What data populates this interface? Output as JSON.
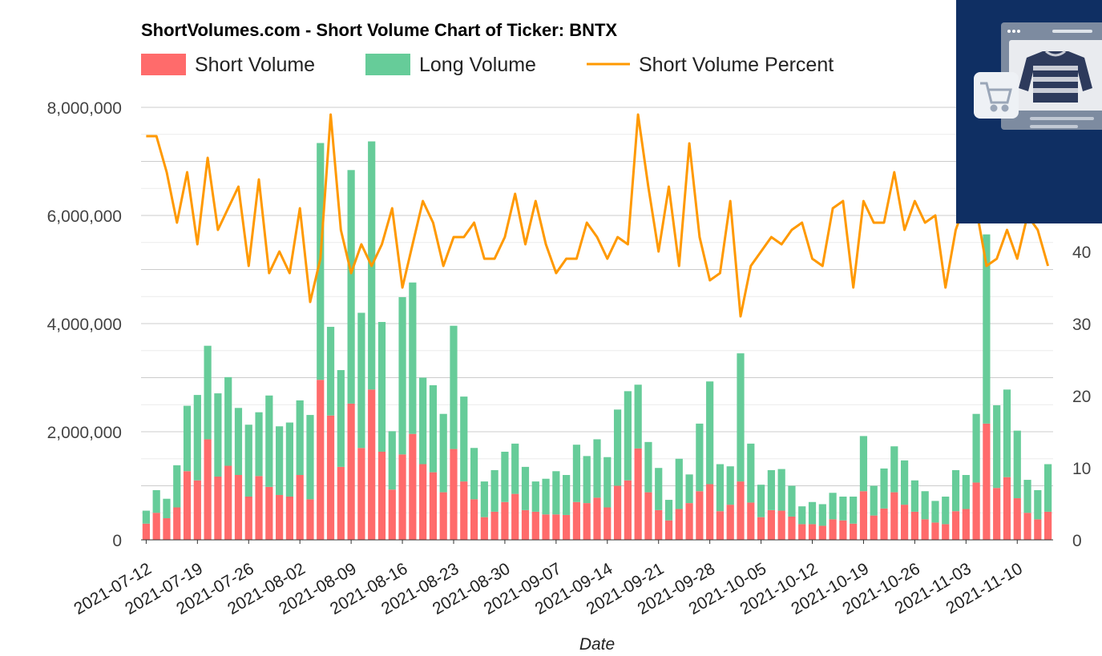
{
  "chart_data": {
    "type": "bar",
    "title": "ShortVolumes.com - Short Volume Chart of Ticker: BNTX",
    "xlabel": "Date",
    "ylabel_left": "",
    "ylabel_right": "",
    "ylim_left": [
      0,
      8000000
    ],
    "ylim_right": [
      0,
      60
    ],
    "yticks_left": [
      "0",
      "2,000,000",
      "4,000,000",
      "6,000,000",
      "8,000,000"
    ],
    "yticks_right": [
      "0",
      "10",
      "20",
      "30",
      "40"
    ],
    "legend": [
      "Short Volume",
      "Long Volume",
      "Short Volume Percent"
    ],
    "colors": {
      "short": "#ff6b6b",
      "long": "#66cc99",
      "percent": "#ff9900",
      "grid": "#cccccc",
      "text": "#444444"
    },
    "xtick_labels": [
      "2021-07-12",
      "2021-07-19",
      "2021-07-26",
      "2021-08-02",
      "2021-08-09",
      "2021-08-16",
      "2021-08-23",
      "2021-08-30",
      "2021-09-07",
      "2021-09-14",
      "2021-09-21",
      "2021-09-28",
      "2021-10-05",
      "2021-10-12",
      "2021-10-19",
      "2021-10-26",
      "2021-11-03",
      "2021-11-10"
    ],
    "xtick_index": [
      0,
      5,
      10,
      15,
      20,
      25,
      30,
      35,
      40,
      45,
      50,
      55,
      60,
      65,
      70,
      75,
      80,
      85
    ],
    "series": [
      {
        "name": "Short Volume",
        "stack": "volume",
        "values": [
          300000,
          500000,
          400000,
          600000,
          1270000,
          1100000,
          1860000,
          1170000,
          1370000,
          1200000,
          800000,
          1180000,
          980000,
          830000,
          800000,
          1200000,
          750000,
          2960000,
          2300000,
          1350000,
          2520000,
          1700000,
          2780000,
          1630000,
          930000,
          1580000,
          1960000,
          1400000,
          1250000,
          880000,
          1680000,
          1080000,
          750000,
          420000,
          520000,
          700000,
          850000,
          550000,
          520000,
          470000,
          470000,
          460000,
          700000,
          680000,
          780000,
          600000,
          1000000,
          1100000,
          1690000,
          880000,
          550000,
          360000,
          570000,
          680000,
          900000,
          1030000,
          530000,
          650000,
          1080000,
          690000,
          420000,
          550000,
          540000,
          430000,
          290000,
          290000,
          260000,
          380000,
          360000,
          300000,
          900000,
          450000,
          580000,
          880000,
          650000,
          520000,
          380000,
          320000,
          290000,
          530000,
          570000,
          1060000,
          2150000,
          960000,
          1160000,
          770000,
          500000,
          380000,
          520000
        ]
      },
      {
        "name": "Long Volume",
        "stack": "volume",
        "values": [
          240000,
          420000,
          360000,
          780000,
          1210000,
          1580000,
          1730000,
          1540000,
          1640000,
          1240000,
          1330000,
          1180000,
          1690000,
          1270000,
          1370000,
          1380000,
          1560000,
          4380000,
          1640000,
          1790000,
          4320000,
          2500000,
          4590000,
          2400000,
          1080000,
          2910000,
          2800000,
          1600000,
          1610000,
          1450000,
          2280000,
          1570000,
          950000,
          660000,
          770000,
          930000,
          930000,
          800000,
          560000,
          660000,
          800000,
          740000,
          1060000,
          870000,
          1080000,
          930000,
          1410000,
          1650000,
          1180000,
          930000,
          780000,
          380000,
          930000,
          530000,
          1250000,
          1900000,
          870000,
          710000,
          2370000,
          1090000,
          600000,
          740000,
          770000,
          570000,
          330000,
          410000,
          400000,
          490000,
          440000,
          500000,
          1020000,
          550000,
          740000,
          850000,
          820000,
          580000,
          520000,
          400000,
          510000,
          760000,
          630000,
          1270000,
          3500000,
          1530000,
          1620000,
          1250000,
          610000,
          540000,
          880000
        ]
      },
      {
        "name": "Short Volume Percent",
        "axis": "right",
        "values": [
          56,
          56,
          51,
          44,
          51,
          41,
          53,
          43,
          46,
          49,
          38,
          50,
          37,
          40,
          37,
          46,
          33,
          39,
          59,
          43,
          37,
          41,
          38,
          41,
          46,
          35,
          41,
          47,
          44,
          38,
          42,
          42,
          44,
          39,
          39,
          42,
          48,
          41,
          47,
          41,
          37,
          39,
          39,
          44,
          42,
          39,
          42,
          41,
          59,
          49,
          40,
          49,
          38,
          55,
          42,
          36,
          37,
          47,
          31,
          38,
          40,
          42,
          41,
          43,
          44,
          39,
          38,
          46,
          47,
          35,
          47,
          44,
          44,
          51,
          43,
          47,
          44,
          45,
          35,
          43,
          47,
          46,
          38,
          39,
          43,
          39,
          45,
          43,
          38
        ]
      }
    ]
  }
}
